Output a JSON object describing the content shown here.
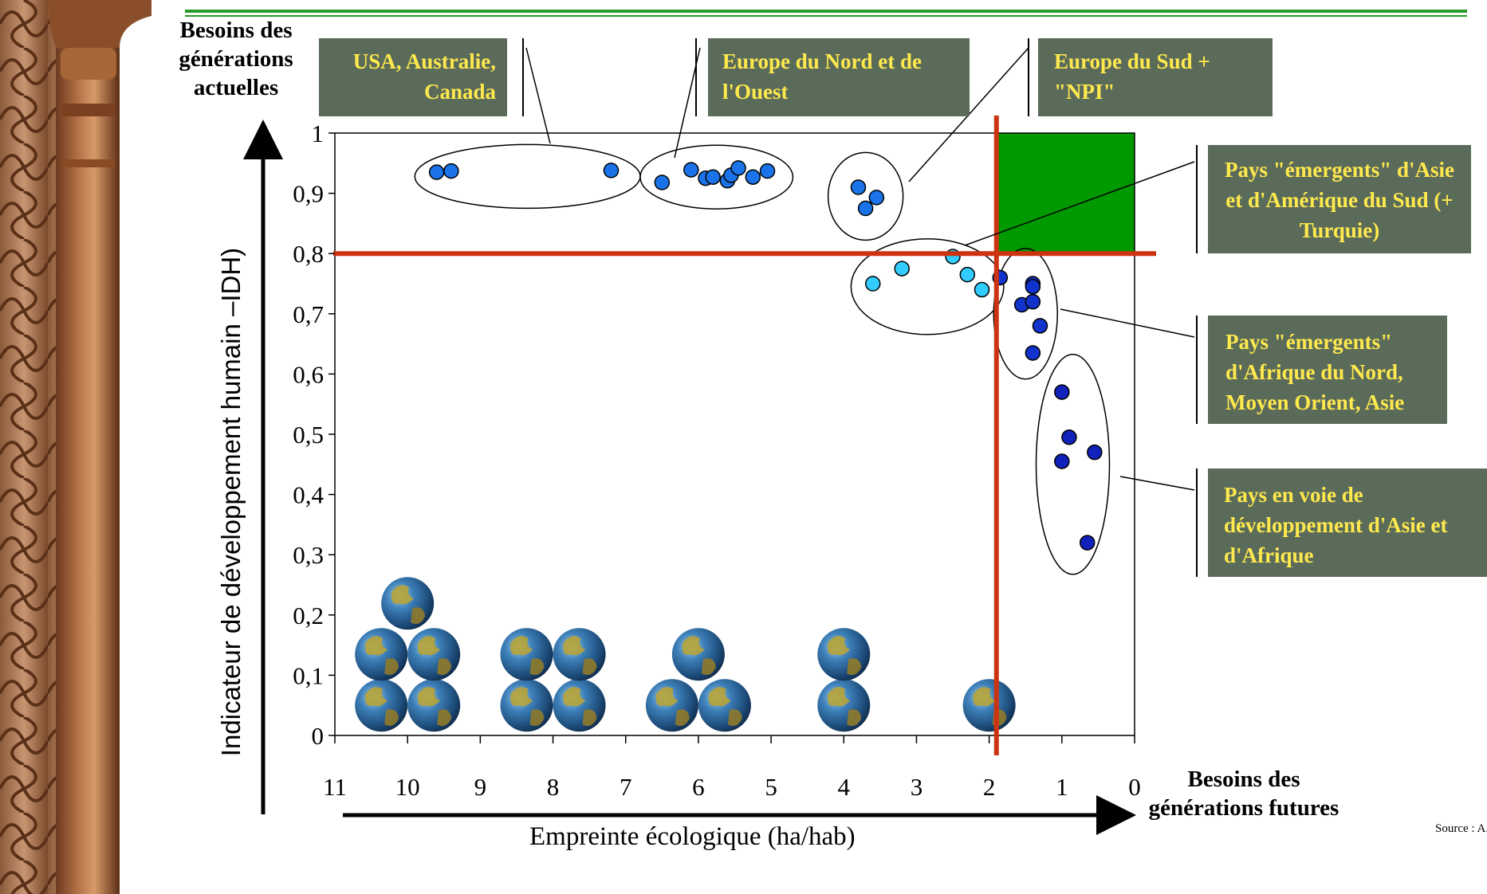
{
  "chart_data": {
    "type": "scatter",
    "xlabel": "Empreinte écologique (ha/hab)",
    "ylabel": "Indicateur de développement humain –IDH)",
    "xlim": [
      11,
      0
    ],
    "ylim": [
      0,
      1
    ],
    "x_ticks": [
      "11",
      "10",
      "9",
      "8",
      "7",
      "6",
      "5",
      "4",
      "3",
      "2",
      "1",
      "0"
    ],
    "y_ticks": [
      "0",
      "0,1",
      "0,2",
      "0,3",
      "0,4",
      "0,5",
      "0,6",
      "0,7",
      "0,8",
      "0,9",
      "1"
    ],
    "thresholds": {
      "x": 1.9,
      "y": 0.8
    },
    "sustainable_zone": {
      "x_range": [
        1.9,
        0
      ],
      "y_range": [
        0.8,
        1
      ],
      "color": "#009900"
    },
    "threshold_color": "#cc3311",
    "groups": [
      {
        "label": "USA, Australie, Canada",
        "color": "#1a73e8",
        "points": [
          [
            9.6,
            0.935
          ],
          [
            9.4,
            0.937
          ],
          [
            7.2,
            0.938
          ]
        ]
      },
      {
        "label": "Europe du Nord et de l'Ouest",
        "color": "#1a73e8",
        "points": [
          [
            6.5,
            0.918
          ],
          [
            6.1,
            0.939
          ],
          [
            5.9,
            0.925
          ],
          [
            5.8,
            0.927
          ],
          [
            5.6,
            0.921
          ],
          [
            5.55,
            0.93
          ],
          [
            5.45,
            0.942
          ],
          [
            5.25,
            0.927
          ],
          [
            5.05,
            0.937
          ]
        ]
      },
      {
        "label": "Europe du Sud + \"NPI\"",
        "color": "#1a73e8",
        "points": [
          [
            3.8,
            0.91
          ],
          [
            3.55,
            0.893
          ],
          [
            3.7,
            0.875
          ]
        ]
      },
      {
        "label": "Pays \"émergents\" d'Asie et d'Amérique du Sud (+ Turquie)",
        "color": "#33ccff",
        "points": [
          [
            3.6,
            0.75
          ],
          [
            3.2,
            0.775
          ],
          [
            2.5,
            0.795
          ],
          [
            2.3,
            0.765
          ],
          [
            2.1,
            0.74
          ]
        ]
      },
      {
        "label": "Pays \"émergents\" d'Afrique du Nord, Moyen Orient, Asie",
        "color": "#1133cc",
        "points": [
          [
            1.85,
            0.76
          ],
          [
            1.4,
            0.75
          ],
          [
            1.4,
            0.745
          ],
          [
            1.55,
            0.715
          ],
          [
            1.4,
            0.72
          ],
          [
            1.3,
            0.68
          ],
          [
            1.4,
            0.635
          ]
        ]
      },
      {
        "label": "Pays en voie de développement d'Asie et d'Afrique",
        "color": "#1122bb",
        "points": [
          [
            1.0,
            0.57
          ],
          [
            0.9,
            0.495
          ],
          [
            1.0,
            0.455
          ],
          [
            0.55,
            0.47
          ],
          [
            0.65,
            0.32
          ]
        ]
      }
    ],
    "earths": [
      {
        "x": 10,
        "count": 5
      },
      {
        "x": 8,
        "count": 4
      },
      {
        "x": 6,
        "count": 3
      },
      {
        "x": 4,
        "count": 2
      },
      {
        "x": 2,
        "count": 1
      }
    ]
  },
  "labels": {
    "y_arrow_title": "Besoins des générations actuelles",
    "x_arrow_title": "Besoins des générations futures",
    "source": "Source : A. Boutaud",
    "box_usa": "USA, Australie, Canada",
    "box_europe_nord": "Europe du Nord et de l'Ouest",
    "box_europe_sud": "Europe du Sud + \"NPI\"",
    "box_emergents_asie": "Pays \"émergents\" d'Asie et d'Amérique du Sud (+ Turquie)",
    "box_emergents_afrique": "Pays \"émergents\" d'Afrique du Nord, Moyen Orient, Asie",
    "box_pvd": "Pays en voie de développement d'Asie et d'Afrique"
  },
  "colors": {
    "label_box_bg": "#5a6b5a",
    "label_box_text": "#ffe94d",
    "top_rule": "#2a9a2a"
  }
}
